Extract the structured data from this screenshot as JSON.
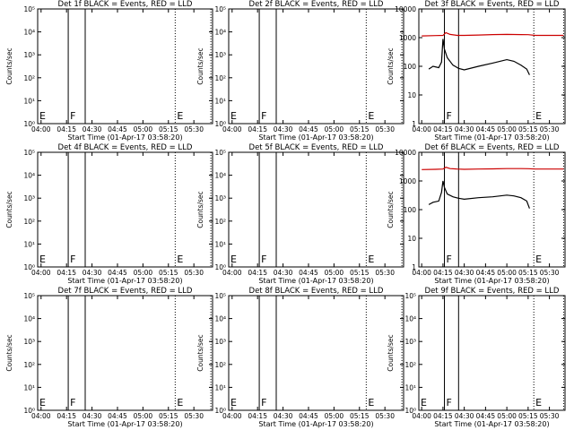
{
  "chart_data": [
    {
      "type": "line",
      "title": "Det 1f BLACK = Events, RED = LLD",
      "xlabel": "Start Time (01-Apr-17 03:58:20)",
      "ylabel": "Counts/sec",
      "yscale": "log",
      "ylim": [
        1,
        10000
      ],
      "ytick_labels": [
        "10⁰",
        "10¹",
        "10²",
        "10³",
        "10⁴",
        "10⁵"
      ],
      "xlim": [
        "03:58",
        "05:41"
      ],
      "xtick_labels": [
        "04:00",
        "04:15",
        "04:30",
        "04:45",
        "05:00",
        "05:15",
        "05:30"
      ],
      "markers": [
        {
          "label": "E",
          "time": "03:58",
          "style": "dotted"
        },
        {
          "label": "F",
          "time": "04:16",
          "style": "solid"
        },
        {
          "label": "",
          "time": "04:26",
          "style": "solid"
        },
        {
          "label": "E",
          "time": "05:19",
          "style": "dotted"
        },
        {
          "label": "",
          "time": "05:40",
          "style": "dotted"
        }
      ],
      "series": []
    },
    {
      "type": "line",
      "title": "Det 2f BLACK = Events, RED = LLD",
      "xlabel": "Start Time (01-Apr-17 03:58:20)",
      "ylabel": "Counts/sec",
      "yscale": "log",
      "ylim": [
        1,
        10000
      ],
      "ytick_labels": [
        "10⁰",
        "10¹",
        "10²",
        "10³",
        "10⁴",
        "10⁵"
      ],
      "xlim": [
        "03:58",
        "05:41"
      ],
      "xtick_labels": [
        "04:00",
        "04:15",
        "04:30",
        "04:45",
        "05:00",
        "05:15",
        "05:30"
      ],
      "markers": [
        {
          "label": "E",
          "time": "03:58",
          "style": "dotted"
        },
        {
          "label": "F",
          "time": "04:16",
          "style": "solid"
        },
        {
          "label": "",
          "time": "04:26",
          "style": "solid"
        },
        {
          "label": "E",
          "time": "05:19",
          "style": "dotted"
        },
        {
          "label": "",
          "time": "05:40",
          "style": "dotted"
        }
      ],
      "series": []
    },
    {
      "type": "line",
      "title": "Det 3f BLACK = Events, RED = LLD",
      "xlabel": "Start Time (01-Apr-17 03:58:20)",
      "ylabel": "Counts/sec",
      "yscale": "log",
      "ylim": [
        1,
        10000
      ],
      "ytick_labels": [
        "1",
        "10",
        "100",
        "1000",
        "10000"
      ],
      "xlim": [
        "03:58",
        "05:41"
      ],
      "xtick_labels": [
        "04:00",
        "04:15",
        "04:30",
        "04:45",
        "05:00",
        "05:15",
        "05:30"
      ],
      "markers": [
        {
          "label": "",
          "time": "03:58",
          "style": "dotted"
        },
        {
          "label": "F",
          "time": "04:16",
          "style": "solid"
        },
        {
          "label": "",
          "time": "04:26",
          "style": "solid"
        },
        {
          "label": "E",
          "time": "05:19",
          "style": "dotted"
        },
        {
          "label": "",
          "time": "05:40",
          "style": "dotted"
        }
      ],
      "series": [
        {
          "color": "#cc0000",
          "x": [
            "04:00",
            "04:10",
            "04:15",
            "04:17",
            "04:20",
            "04:25",
            "04:30",
            "04:40",
            "04:50",
            "05:00",
            "05:10",
            "05:15",
            "05:20",
            "05:30",
            "05:40"
          ],
          "y": [
            1150,
            1180,
            1200,
            1500,
            1300,
            1200,
            1200,
            1230,
            1280,
            1300,
            1280,
            1270,
            1200,
            1200,
            1200
          ]
        },
        {
          "color": "#000000",
          "x": [
            "04:00",
            "04:05",
            "04:08",
            "04:12",
            "04:14",
            "04:15",
            "04:16",
            "04:18",
            "04:22",
            "04:26",
            "04:30",
            "04:40",
            "04:50",
            "05:00",
            "05:05",
            "05:10",
            "05:14",
            "05:16"
          ],
          "y": [
            null,
            80,
            100,
            90,
            140,
            900,
            400,
            200,
            110,
            85,
            75,
            100,
            130,
            170,
            150,
            110,
            80,
            50
          ]
        }
      ]
    },
    {
      "type": "line",
      "title": "Det 4f BLACK = Events, RED = LLD",
      "xlabel": "Start Time (01-Apr-17 03:58:20)",
      "ylabel": "Counts/sec",
      "yscale": "log",
      "ylim": [
        1,
        10000
      ],
      "ytick_labels": [
        "10⁰",
        "10¹",
        "10²",
        "10³",
        "10⁴",
        "10⁵"
      ],
      "xlim": [
        "03:58",
        "05:41"
      ],
      "xtick_labels": [
        "04:00",
        "04:15",
        "04:30",
        "04:45",
        "05:00",
        "05:15",
        "05:30"
      ],
      "markers": [
        {
          "label": "E",
          "time": "03:58",
          "style": "dotted"
        },
        {
          "label": "F",
          "time": "04:16",
          "style": "solid"
        },
        {
          "label": "",
          "time": "04:26",
          "style": "solid"
        },
        {
          "label": "E",
          "time": "05:19",
          "style": "dotted"
        },
        {
          "label": "",
          "time": "05:40",
          "style": "dotted"
        }
      ],
      "series": []
    },
    {
      "type": "line",
      "title": "Det 5f BLACK = Events, RED = LLD",
      "xlabel": "Start Time (01-Apr-17 03:58:20)",
      "ylabel": "Counts/sec",
      "yscale": "log",
      "ylim": [
        1,
        10000
      ],
      "ytick_labels": [
        "10⁰",
        "10¹",
        "10²",
        "10³",
        "10⁴",
        "10⁵"
      ],
      "xlim": [
        "03:58",
        "05:41"
      ],
      "xtick_labels": [
        "04:00",
        "04:15",
        "04:30",
        "04:45",
        "05:00",
        "05:15",
        "05:30"
      ],
      "markers": [
        {
          "label": "E",
          "time": "03:58",
          "style": "dotted"
        },
        {
          "label": "F",
          "time": "04:16",
          "style": "solid"
        },
        {
          "label": "",
          "time": "04:26",
          "style": "solid"
        },
        {
          "label": "E",
          "time": "05:19",
          "style": "dotted"
        },
        {
          "label": "",
          "time": "05:40",
          "style": "dotted"
        }
      ],
      "series": []
    },
    {
      "type": "line",
      "title": "Det 6f BLACK = Events, RED = LLD",
      "xlabel": "Start Time (01-Apr-17 03:58:20)",
      "ylabel": "Counts/sec",
      "yscale": "log",
      "ylim": [
        1,
        10000
      ],
      "ytick_labels": [
        "1",
        "10",
        "100",
        "1000",
        "10000"
      ],
      "xlim": [
        "03:58",
        "05:41"
      ],
      "xtick_labels": [
        "04:00",
        "04:15",
        "04:30",
        "04:45",
        "05:00",
        "05:15",
        "05:30"
      ],
      "markers": [
        {
          "label": "",
          "time": "03:58",
          "style": "dotted"
        },
        {
          "label": "F",
          "time": "04:16",
          "style": "solid"
        },
        {
          "label": "",
          "time": "04:26",
          "style": "solid"
        },
        {
          "label": "E",
          "time": "05:19",
          "style": "dotted"
        },
        {
          "label": "",
          "time": "05:40",
          "style": "dotted"
        }
      ],
      "series": [
        {
          "color": "#cc0000",
          "x": [
            "04:00",
            "04:10",
            "04:15",
            "04:17",
            "04:20",
            "04:25",
            "04:30",
            "04:40",
            "04:50",
            "05:00",
            "05:10",
            "05:15",
            "05:20",
            "05:30",
            "05:40"
          ],
          "y": [
            2500,
            2550,
            2600,
            3000,
            2700,
            2600,
            2550,
            2600,
            2650,
            2700,
            2700,
            2680,
            2600,
            2600,
            2600
          ]
        },
        {
          "color": "#000000",
          "x": [
            "04:00",
            "04:05",
            "04:08",
            "04:12",
            "04:14",
            "04:15",
            "04:16",
            "04:18",
            "04:22",
            "04:26",
            "04:30",
            "04:40",
            "04:50",
            "05:00",
            "05:05",
            "05:10",
            "05:14",
            "05:16"
          ],
          "y": [
            null,
            150,
            180,
            200,
            400,
            1000,
            600,
            350,
            280,
            250,
            230,
            260,
            280,
            320,
            300,
            260,
            200,
            110
          ]
        }
      ]
    },
    {
      "type": "line",
      "title": "Det 7f BLACK = Events, RED = LLD",
      "xlabel": "Start Time (01-Apr-17 03:58:20)",
      "ylabel": "Counts/sec",
      "yscale": "log",
      "ylim": [
        1,
        10000
      ],
      "ytick_labels": [
        "10⁰",
        "10¹",
        "10²",
        "10³",
        "10⁴",
        "10⁵"
      ],
      "xlim": [
        "03:58",
        "05:41"
      ],
      "xtick_labels": [
        "04:00",
        "04:15",
        "04:30",
        "04:45",
        "05:00",
        "05:15",
        "05:30"
      ],
      "markers": [
        {
          "label": "E",
          "time": "03:58",
          "style": "dotted"
        },
        {
          "label": "F",
          "time": "04:16",
          "style": "solid"
        },
        {
          "label": "",
          "time": "04:26",
          "style": "solid"
        },
        {
          "label": "E",
          "time": "05:19",
          "style": "dotted"
        },
        {
          "label": "",
          "time": "05:40",
          "style": "dotted"
        }
      ],
      "series": []
    },
    {
      "type": "line",
      "title": "Det 8f BLACK = Events, RED = LLD",
      "xlabel": "Start Time (01-Apr-17 03:58:20)",
      "ylabel": "Counts/sec",
      "yscale": "log",
      "ylim": [
        1,
        10000
      ],
      "ytick_labels": [
        "10⁰",
        "10¹",
        "10²",
        "10³",
        "10⁴",
        "10⁵"
      ],
      "xlim": [
        "03:58",
        "05:41"
      ],
      "xtick_labels": [
        "04:00",
        "04:15",
        "04:30",
        "04:45",
        "05:00",
        "05:15",
        "05:30"
      ],
      "markers": [
        {
          "label": "E",
          "time": "03:58",
          "style": "dotted"
        },
        {
          "label": "F",
          "time": "04:16",
          "style": "solid"
        },
        {
          "label": "",
          "time": "04:26",
          "style": "solid"
        },
        {
          "label": "E",
          "time": "05:19",
          "style": "dotted"
        },
        {
          "label": "",
          "time": "05:40",
          "style": "dotted"
        }
      ],
      "series": []
    },
    {
      "type": "line",
      "title": "Det 9f BLACK = Events, RED = LLD",
      "xlabel": "Start Time (01-Apr-17 03:58:20)",
      "ylabel": "Counts/sec",
      "yscale": "log",
      "ylim": [
        1,
        10000
      ],
      "ytick_labels": [
        "10⁰",
        "10¹",
        "10²",
        "10³",
        "10⁴",
        "10⁵"
      ],
      "xlim": [
        "03:58",
        "05:41"
      ],
      "xtick_labels": [
        "04:00",
        "04:15",
        "04:30",
        "04:45",
        "05:00",
        "05:15",
        "05:30"
      ],
      "markers": [
        {
          "label": "E",
          "time": "03:58",
          "style": "dotted"
        },
        {
          "label": "F",
          "time": "04:16",
          "style": "solid"
        },
        {
          "label": "",
          "time": "04:26",
          "style": "solid"
        },
        {
          "label": "E",
          "time": "05:19",
          "style": "dotted"
        },
        {
          "label": "",
          "time": "05:40",
          "style": "dotted"
        }
      ],
      "series": []
    }
  ]
}
